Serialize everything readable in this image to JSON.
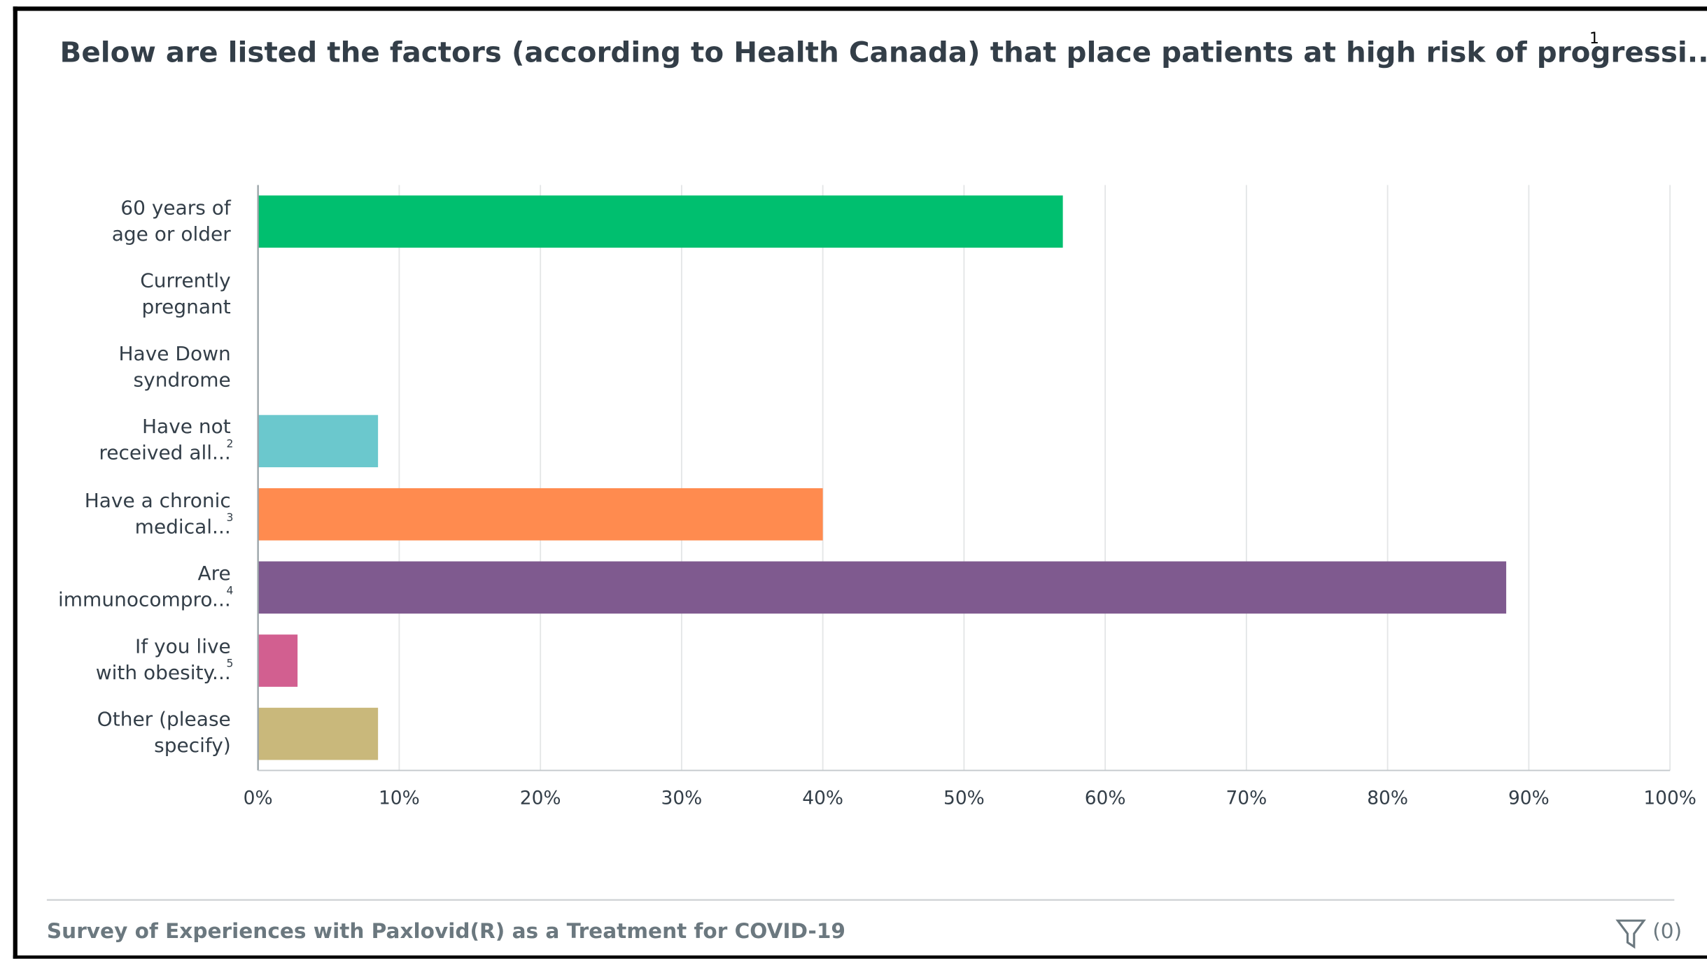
{
  "chart_data": {
    "type": "bar",
    "orientation": "horizontal",
    "title": "Below are listed the factors (according to Health Canada) that place patients at high risk of progressi...",
    "title_note": "1",
    "categories": [
      "60 years of\nage or older",
      "Currently\npregnant",
      "Have Down\nsyndrome",
      "Have not\nreceived all...",
      "Have a chronic\nmedical...",
      "Are\nimmunocompro...",
      "If you live\nwith obesity...",
      "Other (please\nspecify)"
    ],
    "category_notes": [
      null,
      null,
      null,
      "2",
      "3",
      "4",
      "5",
      null
    ],
    "values": [
      57,
      0,
      0,
      8.5,
      40,
      88.4,
      2.8,
      8.5
    ],
    "colors": [
      "#00bf6f",
      "#6bc8cd",
      "#6bc8cd",
      "#6bc8cd",
      "#ff8b4f",
      "#7f5a8f",
      "#d25f90",
      "#c9b87b"
    ],
    "xlim": [
      0,
      100
    ],
    "xticks": [
      {
        "value": 0,
        "label": "0%"
      },
      {
        "value": 10,
        "label": "10%"
      },
      {
        "value": 20,
        "label": "20%"
      },
      {
        "value": 30,
        "label": "30%"
      },
      {
        "value": 40,
        "label": "40%"
      },
      {
        "value": 50,
        "label": "50%"
      },
      {
        "value": 60,
        "label": "60%"
      },
      {
        "value": 70,
        "label": "70%"
      },
      {
        "value": 80,
        "label": "80%"
      },
      {
        "value": 90,
        "label": "90%"
      },
      {
        "value": 100,
        "label": "100%"
      }
    ],
    "grid": true,
    "footer": "Survey of Experiences with Paxlovid(R) as a Treatment for COVID-19",
    "filter_label": "(0)"
  }
}
